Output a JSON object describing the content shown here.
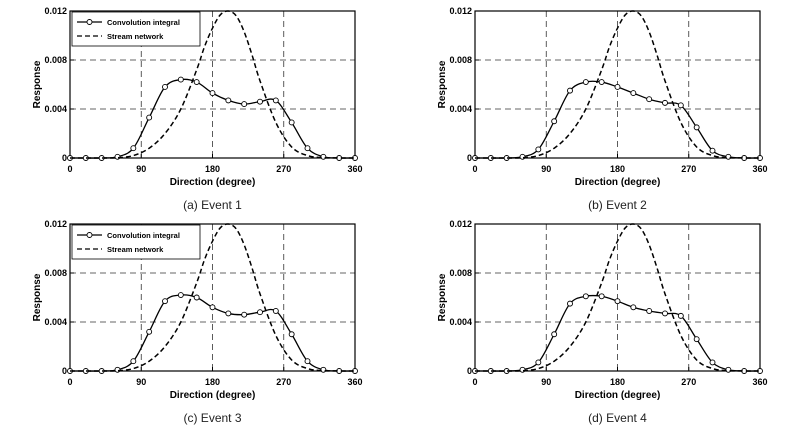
{
  "figure": {
    "panels_count": 4
  },
  "chart_data": [
    {
      "type": "line",
      "caption": "(a) Event 1",
      "xlabel": "Direction (degree)",
      "ylabel": "Response",
      "xlim": [
        0,
        360
      ],
      "ylim": [
        0,
        0.012
      ],
      "xticks": [
        0,
        90,
        180,
        270,
        360
      ],
      "yticks": [
        0,
        0.004,
        0.008,
        0.012
      ],
      "ytick_labels": [
        "0",
        "0.004",
        "0.008",
        "0.012"
      ],
      "grid": true,
      "legend": {
        "show": true,
        "placement": "top-left"
      },
      "series": [
        {
          "name": "Convolution integral",
          "style": "solid-circle-markers",
          "x": [
            0,
            20,
            40,
            60,
            80,
            100,
            120,
            140,
            160,
            180,
            200,
            220,
            240,
            260,
            280,
            300,
            320,
            340,
            360
          ],
          "y": [
            0,
            0,
            0,
            0.0001,
            0.0008,
            0.0033,
            0.0058,
            0.0064,
            0.0062,
            0.0053,
            0.0047,
            0.0044,
            0.0046,
            0.0047,
            0.0029,
            0.0008,
            0.0001,
            0,
            0
          ]
        },
        {
          "name": "Stream network",
          "style": "dashed",
          "x": [
            0,
            40,
            60,
            80,
            100,
            120,
            140,
            160,
            170,
            180,
            190,
            200,
            210,
            220,
            230,
            240,
            260,
            280,
            300,
            320,
            360
          ],
          "y": [
            0,
            0,
            2e-05,
            0.0002,
            0.0008,
            0.002,
            0.004,
            0.0072,
            0.0091,
            0.0106,
            0.0117,
            0.012,
            0.0116,
            0.0103,
            0.0084,
            0.0063,
            0.0029,
            0.0009,
            0.0002,
            3e-05,
            0
          ]
        }
      ]
    },
    {
      "type": "line",
      "caption": "(b) Event 2",
      "xlabel": "Direction (degree)",
      "ylabel": "Response",
      "xlim": [
        0,
        360
      ],
      "ylim": [
        0,
        0.012
      ],
      "xticks": [
        0,
        90,
        180,
        270,
        360
      ],
      "yticks": [
        0,
        0.004,
        0.008,
        0.012
      ],
      "ytick_labels": [
        "0",
        "0.004",
        "0.008",
        "0.012"
      ],
      "grid": true,
      "legend": {
        "show": false
      },
      "series": [
        {
          "name": "Convolution integral",
          "style": "solid-circle-markers",
          "x": [
            0,
            20,
            40,
            60,
            80,
            100,
            120,
            140,
            160,
            180,
            200,
            220,
            240,
            260,
            280,
            300,
            320,
            340,
            360
          ],
          "y": [
            0,
            0,
            0,
            0.0001,
            0.0007,
            0.003,
            0.0055,
            0.0062,
            0.0062,
            0.0058,
            0.0053,
            0.0048,
            0.0045,
            0.0043,
            0.0025,
            0.0006,
            0.0001,
            0,
            0
          ]
        },
        {
          "name": "Stream network",
          "style": "dashed",
          "x": [
            0,
            40,
            60,
            80,
            100,
            120,
            140,
            160,
            170,
            180,
            190,
            200,
            210,
            220,
            230,
            240,
            260,
            280,
            300,
            320,
            360
          ],
          "y": [
            0,
            0,
            2e-05,
            0.0002,
            0.0008,
            0.002,
            0.004,
            0.0072,
            0.0091,
            0.0106,
            0.0117,
            0.012,
            0.0116,
            0.0103,
            0.0084,
            0.0063,
            0.0029,
            0.0009,
            0.0002,
            3e-05,
            0
          ]
        }
      ]
    },
    {
      "type": "line",
      "caption": "(c) Event 3",
      "xlabel": "Direction (degree)",
      "ylabel": "Response",
      "xlim": [
        0,
        360
      ],
      "ylim": [
        0,
        0.012
      ],
      "xticks": [
        0,
        90,
        180,
        270,
        360
      ],
      "yticks": [
        0,
        0.004,
        0.008,
        0.012
      ],
      "ytick_labels": [
        "0",
        "0.004",
        "0.008",
        "0.012"
      ],
      "grid": true,
      "legend": {
        "show": true,
        "placement": "top-left"
      },
      "series": [
        {
          "name": "Convolution integral",
          "style": "solid-circle-markers",
          "x": [
            0,
            20,
            40,
            60,
            80,
            100,
            120,
            140,
            160,
            180,
            200,
            220,
            240,
            260,
            280,
            300,
            320,
            340,
            360
          ],
          "y": [
            0,
            0,
            0,
            0.0001,
            0.0008,
            0.0032,
            0.0057,
            0.0062,
            0.006,
            0.0052,
            0.0047,
            0.0046,
            0.0048,
            0.0049,
            0.003,
            0.0008,
            0.0001,
            0,
            0
          ]
        },
        {
          "name": "Stream network",
          "style": "dashed",
          "x": [
            0,
            40,
            60,
            80,
            100,
            120,
            140,
            160,
            170,
            180,
            190,
            200,
            210,
            220,
            230,
            240,
            260,
            280,
            300,
            320,
            360
          ],
          "y": [
            0,
            0,
            2e-05,
            0.0002,
            0.0008,
            0.002,
            0.004,
            0.0072,
            0.0091,
            0.0106,
            0.0117,
            0.012,
            0.0116,
            0.0103,
            0.0084,
            0.0063,
            0.0029,
            0.0009,
            0.0002,
            3e-05,
            0
          ]
        }
      ]
    },
    {
      "type": "line",
      "caption": "(d) Event 4",
      "xlabel": "Direction (degree)",
      "ylabel": "Response",
      "xlim": [
        0,
        360
      ],
      "ylim": [
        0,
        0.012
      ],
      "xticks": [
        0,
        90,
        180,
        270,
        360
      ],
      "yticks": [
        0,
        0.004,
        0.008,
        0.012
      ],
      "ytick_labels": [
        "0",
        "0.004",
        "0.008",
        "0.012"
      ],
      "grid": true,
      "legend": {
        "show": false
      },
      "series": [
        {
          "name": "Convolution integral",
          "style": "solid-circle-markers",
          "x": [
            0,
            20,
            40,
            60,
            80,
            100,
            120,
            140,
            160,
            180,
            200,
            220,
            240,
            260,
            280,
            300,
            320,
            340,
            360
          ],
          "y": [
            0,
            0,
            0,
            0.0001,
            0.0007,
            0.003,
            0.0055,
            0.0061,
            0.0061,
            0.0057,
            0.0052,
            0.0049,
            0.0047,
            0.0045,
            0.0026,
            0.0007,
            0.0001,
            0,
            0
          ]
        },
        {
          "name": "Stream network",
          "style": "dashed",
          "x": [
            0,
            40,
            60,
            80,
            100,
            120,
            140,
            160,
            170,
            180,
            190,
            200,
            210,
            220,
            230,
            240,
            260,
            280,
            300,
            320,
            360
          ],
          "y": [
            0,
            0,
            2e-05,
            0.0002,
            0.0008,
            0.002,
            0.004,
            0.0072,
            0.0091,
            0.0106,
            0.0117,
            0.012,
            0.0116,
            0.0103,
            0.0084,
            0.0063,
            0.0029,
            0.0009,
            0.0002,
            3e-05,
            0
          ]
        }
      ]
    }
  ]
}
